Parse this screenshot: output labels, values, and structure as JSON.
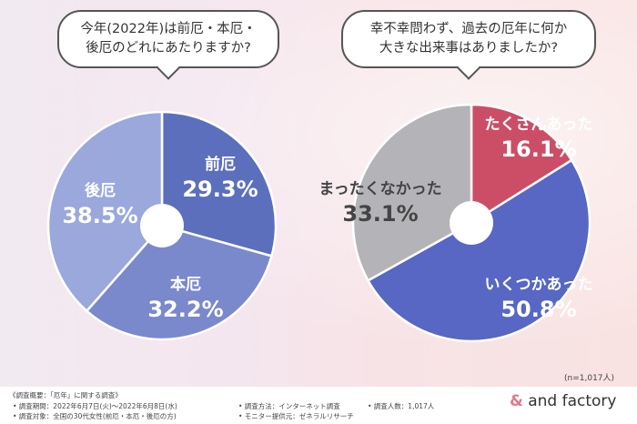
{
  "questions": {
    "q1": [
      "今年(2022年)は前厄・本厄・",
      "後厄のどれにあたりますか?"
    ],
    "q2": [
      "幸不幸問わず、過去の厄年に何か",
      "大きな出来事はありましたか?"
    ]
  },
  "chart_data": [
    {
      "type": "pie",
      "title": "今年(2022年)は前厄・本厄・後厄のどれにあたりますか?",
      "slices": [
        {
          "label": "前厄",
          "value": 29.3,
          "value_label": "29.3%",
          "color": "#5b6fbc"
        },
        {
          "label": "本厄",
          "value": 32.2,
          "value_label": "32.2%",
          "color": "#7a89cc"
        },
        {
          "label": "後厄",
          "value": 38.5,
          "value_label": "38.5%",
          "color": "#9aa8dc"
        }
      ]
    },
    {
      "type": "pie",
      "title": "幸不幸問わず、過去の厄年に何か大きな出来事はありましたか?",
      "slices": [
        {
          "label": "たくさんあった",
          "value": 16.1,
          "value_label": "16.1%",
          "color": "#cc4e66"
        },
        {
          "label": "いくつかあった",
          "value": 50.8,
          "value_label": "50.8%",
          "color": "#5767c3"
        },
        {
          "label": "まったくなかった",
          "value": 33.1,
          "value_label": "33.1%",
          "color": "#b4b4b8"
        }
      ]
    }
  ],
  "sample_note": "(n=1,017人)",
  "footer": {
    "summary": "《調査概要：「厄年」に関する調査》",
    "period": "• 調査期間：2022年6月7日(火)〜2022年6月8日(水)",
    "target": "• 調査対象：全国の30代女性(前厄・本厄・後厄の方)",
    "method": "• 調査方法：インターネット調査",
    "monitor": "• モニター提供元：ゼネラルリサーチ",
    "count": "• 調査人数：1,017人"
  },
  "logo": {
    "amp": "&",
    "name": "and factory"
  }
}
